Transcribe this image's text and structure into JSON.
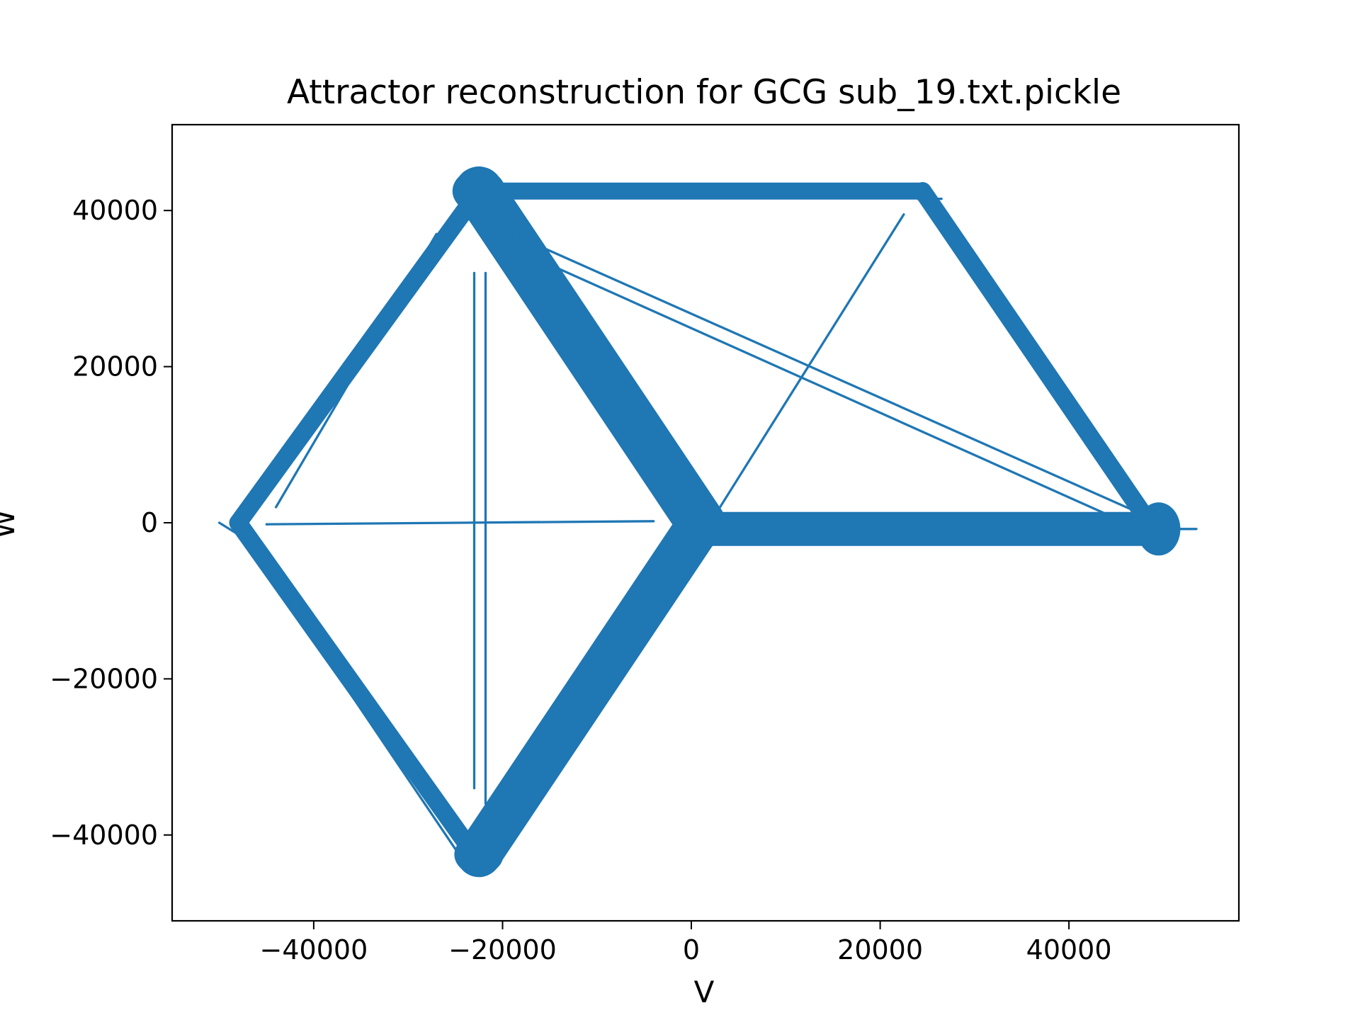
{
  "chart_data": {
    "type": "line",
    "title": "Attractor reconstruction for GCG sub_19.txt.pickle",
    "xlabel": "V",
    "ylabel": "W",
    "xlim": [
      -55000,
      58000
    ],
    "ylim": [
      -51000,
      51000
    ],
    "xticks": [
      -40000,
      -20000,
      0,
      20000,
      40000
    ],
    "yticks": [
      -40000,
      -20000,
      0,
      20000,
      40000
    ],
    "xtick_labels": [
      "−40000",
      "−20000",
      "0",
      "20000",
      "40000"
    ],
    "ytick_labels": [
      "−40000",
      "−20000",
      "0",
      "20000",
      "40000"
    ],
    "grid": false,
    "legend": "none",
    "series_color": "#1f77b4",
    "series": [
      {
        "segments": [
          {
            "width": 5200,
            "points": [
              [
                -22500,
                42500
              ],
              [
                1000,
                0
              ]
            ]
          },
          {
            "width": 4800,
            "points": [
              [
                1000,
                0
              ],
              [
                -22500,
                -42500
              ]
            ]
          },
          {
            "width": 3600,
            "points": [
              [
                1500,
                -800
              ],
              [
                49500,
                -800
              ]
            ]
          },
          {
            "width": 1800,
            "points": [
              [
                -22500,
                42500
              ],
              [
                24500,
                42500
              ]
            ]
          },
          {
            "width": 1900,
            "points": [
              [
                24500,
                42500
              ],
              [
                48500,
                0
              ]
            ]
          },
          {
            "width": 1900,
            "points": [
              [
                -22500,
                42500
              ],
              [
                -48000,
                0
              ]
            ]
          },
          {
            "width": 1900,
            "points": [
              [
                -48000,
                0
              ],
              [
                -23000,
                -42500
              ]
            ]
          },
          {
            "width": 3000,
            "points": [
              [
                -21500,
                -42500
              ],
              [
                -1000,
                -3000
              ]
            ]
          },
          {
            "width": 250,
            "points": [
              [
                -47000,
                -500
              ],
              [
                -24000,
                -41000
              ]
            ]
          },
          {
            "width": 250,
            "points": [
              [
                -48000,
                -600
              ],
              [
                -25000,
                -41800
              ]
            ]
          },
          {
            "width": 250,
            "points": [
              [
                -27000,
                37000
              ],
              [
                -44000,
                2000
              ]
            ]
          },
          {
            "width": 250,
            "points": [
              [
                25000,
                41500
              ],
              [
                49000,
                0
              ]
            ]
          },
          {
            "width": 250,
            "points": [
              [
                -19000,
                37000
              ],
              [
                47000,
                1500
              ]
            ]
          },
          {
            "width": 250,
            "points": [
              [
                -19500,
                35500
              ],
              [
                46000,
                0
              ]
            ]
          },
          {
            "width": 250,
            "points": [
              [
                2000,
                0
              ],
              [
                22500,
                39500
              ]
            ]
          },
          {
            "width": 250,
            "points": [
              [
                -45000,
                -200
              ],
              [
                -4000,
                200
              ]
            ]
          },
          {
            "width": 250,
            "points": [
              [
                -23000,
                32000
              ],
              [
                -23000,
                -34000
              ]
            ]
          },
          {
            "width": 250,
            "points": [
              [
                -21800,
                32000
              ],
              [
                -21800,
                -36000
              ]
            ]
          },
          {
            "width": 250,
            "points": [
              [
                1000,
                -4000
              ],
              [
                -20000,
                -39000
              ]
            ]
          },
          {
            "width": 250,
            "points": [
              [
                -50000,
                0
              ],
              [
                -48000,
                -1500
              ]
            ]
          },
          {
            "width": 250,
            "points": [
              [
                51000,
                -800
              ],
              [
                53500,
                -800
              ]
            ]
          },
          {
            "width": 250,
            "points": [
              [
                24000,
                41500
              ],
              [
                26500,
                41500
              ]
            ]
          }
        ],
        "end_blobs": [
          {
            "v": -22500,
            "w": 42500,
            "rv": 2800,
            "rw": 2800
          },
          {
            "v": -22500,
            "w": -42500,
            "rv": 2600,
            "rw": 2600
          },
          {
            "v": 49500,
            "w": -800,
            "rv": 2300,
            "rw": 3400
          },
          {
            "v": 1000,
            "w": -800,
            "rv": 2600,
            "rw": 2500
          }
        ]
      }
    ]
  }
}
